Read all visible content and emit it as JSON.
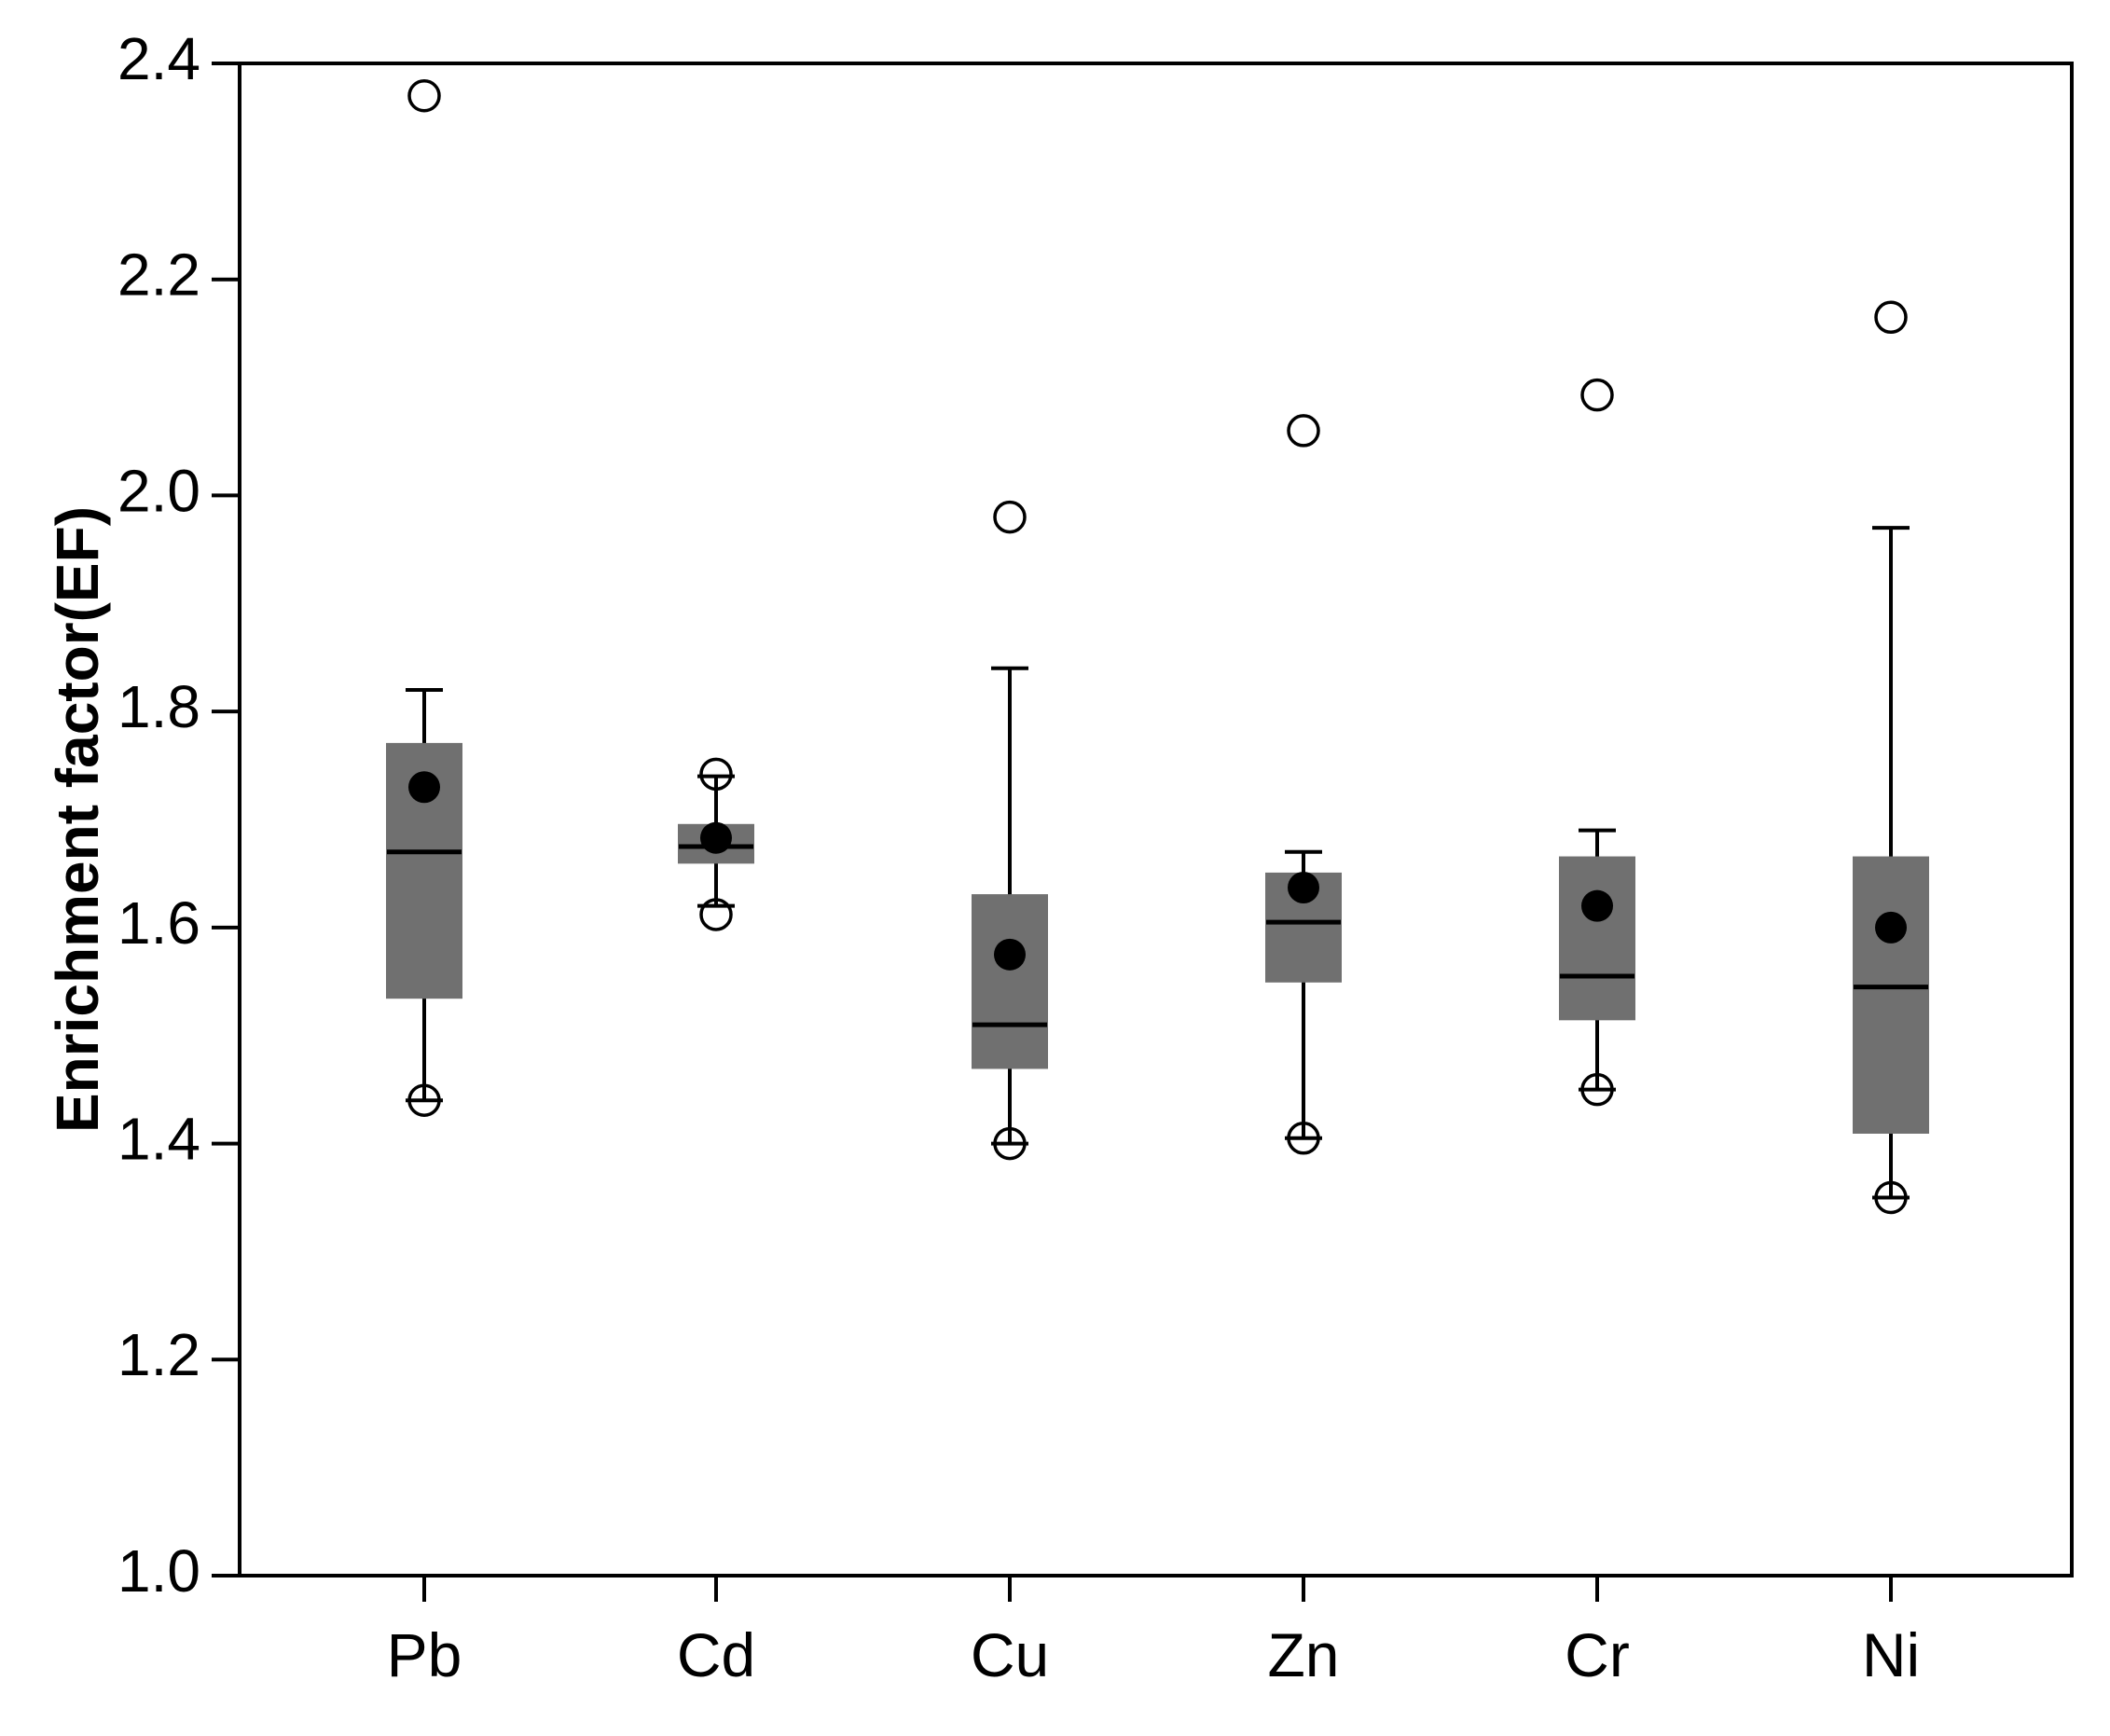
{
  "chart_data": {
    "type": "box",
    "ylabel": "Enrichment factor(EF)",
    "xlabel": "",
    "ylim": [
      1.0,
      2.4
    ],
    "yticks": [
      "1.0",
      "1.2",
      "1.4",
      "1.6",
      "1.8",
      "2.0",
      "2.2",
      "2.4"
    ],
    "categories": [
      "Pb",
      "Cd",
      "Cu",
      "Zn",
      "Cr",
      "Ni"
    ],
    "boxes": [
      {
        "name": "Pb",
        "q1": 1.535,
        "median": 1.67,
        "q3": 1.77,
        "whisker_low": 1.44,
        "whisker_high": 1.82,
        "mean": 1.73,
        "outliers": [
          2.37,
          1.44
        ]
      },
      {
        "name": "Cd",
        "q1": 1.66,
        "median": 1.675,
        "q3": 1.695,
        "whisker_low": 1.62,
        "whisker_high": 1.74,
        "mean": 1.683,
        "outliers": [
          1.742,
          1.612
        ]
      },
      {
        "name": "Cu",
        "q1": 1.47,
        "median": 1.51,
        "q3": 1.63,
        "whisker_low": 1.4,
        "whisker_high": 1.84,
        "mean": 1.575,
        "outliers": [
          1.98,
          1.4
        ]
      },
      {
        "name": "Zn",
        "q1": 1.55,
        "median": 1.605,
        "q3": 1.65,
        "whisker_low": 1.405,
        "whisker_high": 1.67,
        "mean": 1.637,
        "outliers": [
          2.06,
          1.405
        ]
      },
      {
        "name": "Cr",
        "q1": 1.515,
        "median": 1.555,
        "q3": 1.665,
        "whisker_low": 1.45,
        "whisker_high": 1.69,
        "mean": 1.62,
        "outliers": [
          2.093,
          1.45
        ]
      },
      {
        "name": "Ni",
        "q1": 1.41,
        "median": 1.545,
        "q3": 1.665,
        "whisker_low": 1.35,
        "whisker_high": 1.97,
        "mean": 1.6,
        "outliers": [
          2.165,
          1.35
        ]
      }
    ],
    "box_color": "#707070",
    "line_color": "#000000",
    "grid": false,
    "legend": "none"
  }
}
